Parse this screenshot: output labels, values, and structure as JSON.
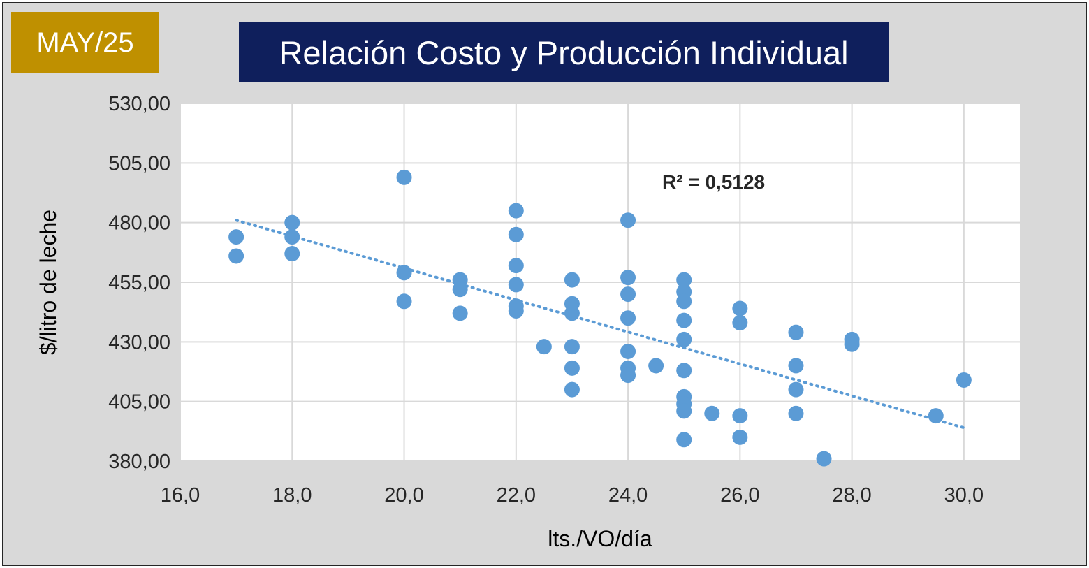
{
  "badge": {
    "label": "MAY/25",
    "color": "#bf9000"
  },
  "title_box": {
    "color": "#0f1f5c"
  },
  "colors": {
    "marker": "#5b9bd5",
    "trend": "#5b9bd5",
    "grid": "#d9d9d9"
  },
  "chart_data": {
    "type": "scatter",
    "title": "Relación Costo y Producción Individual",
    "xlabel": "lts./VO/día",
    "ylabel": "$/litro de leche",
    "xlim": [
      16,
      31
    ],
    "ylim": [
      380,
      530
    ],
    "x_ticks": [
      "16,0",
      "18,0",
      "20,0",
      "22,0",
      "24,0",
      "26,0",
      "28,0",
      "30,0"
    ],
    "y_ticks": [
      "380,00",
      "405,00",
      "430,00",
      "455,00",
      "480,00",
      "505,00",
      "530,00"
    ],
    "grid": true,
    "trendline": {
      "type": "linear",
      "from": [
        17,
        481
      ],
      "to": [
        30,
        394
      ],
      "r2_label": "R² = 0,5128"
    },
    "points": [
      [
        17,
        474
      ],
      [
        17,
        466
      ],
      [
        18,
        480
      ],
      [
        18,
        474
      ],
      [
        18,
        467
      ],
      [
        20,
        499
      ],
      [
        20,
        459
      ],
      [
        20,
        447
      ],
      [
        21,
        456
      ],
      [
        21,
        452
      ],
      [
        21,
        442
      ],
      [
        22,
        485
      ],
      [
        22,
        475
      ],
      [
        22,
        462
      ],
      [
        22,
        454
      ],
      [
        22,
        445
      ],
      [
        22,
        443
      ],
      [
        22.5,
        428
      ],
      [
        23,
        456
      ],
      [
        23,
        446
      ],
      [
        23,
        442
      ],
      [
        23,
        428
      ],
      [
        23,
        419
      ],
      [
        23,
        410
      ],
      [
        24,
        481
      ],
      [
        24,
        457
      ],
      [
        24,
        450
      ],
      [
        24,
        440
      ],
      [
        24,
        426
      ],
      [
        24,
        419
      ],
      [
        24,
        416
      ],
      [
        24.5,
        420
      ],
      [
        25,
        456
      ],
      [
        25,
        451
      ],
      [
        25,
        447
      ],
      [
        25,
        439
      ],
      [
        25,
        431
      ],
      [
        25,
        418
      ],
      [
        25,
        407
      ],
      [
        25,
        404
      ],
      [
        25,
        401
      ],
      [
        25,
        389
      ],
      [
        25.5,
        400
      ],
      [
        26,
        444
      ],
      [
        26,
        438
      ],
      [
        26,
        399
      ],
      [
        26,
        390
      ],
      [
        27,
        434
      ],
      [
        27,
        420
      ],
      [
        27,
        410
      ],
      [
        27,
        400
      ],
      [
        27.5,
        381
      ],
      [
        28,
        431
      ],
      [
        28,
        429
      ],
      [
        29.5,
        399
      ],
      [
        30,
        414
      ]
    ]
  }
}
